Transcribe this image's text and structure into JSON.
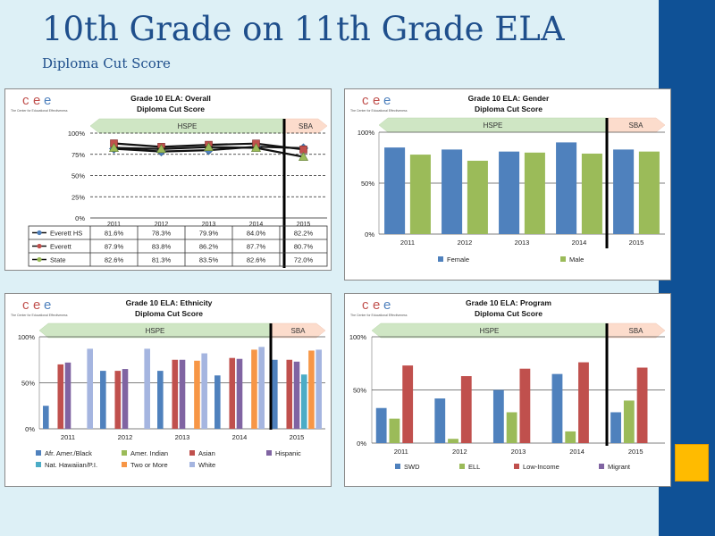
{
  "header": {
    "title": "10th Grade on 11th Grade ELA",
    "subtitle": "Diploma Cut Score"
  },
  "logo": {
    "letters": "cee",
    "tagline": "The Center for Educational Effectiveness"
  },
  "colors": {
    "sidebar": "#0f5196",
    "accent": "#ffbb00",
    "title": "#1f4f8c",
    "hspe_arrow": "#cfe6c4",
    "sba_arrow": "#fcdccc",
    "blue": "#4f81bd",
    "green": "#9bbb59",
    "red": "#c0504d",
    "purple": "#8064a2",
    "teal": "#4bacc6",
    "orange": "#f79646",
    "lightblue": "#a5b5e0"
  },
  "chart_data": [
    {
      "type": "line",
      "title": "Grade 10 ELA: Overall",
      "subtitle": "Diploma Cut Score",
      "periods": {
        "left": "HSPE",
        "right": "SBA"
      },
      "categories": [
        "2011",
        "2012",
        "2013",
        "2014",
        "2015"
      ],
      "yticks": [
        "100%",
        "75%",
        "50%",
        "25%",
        "0%"
      ],
      "ylim": [
        0,
        100
      ],
      "series": [
        {
          "name": "Everett HS",
          "values": [
            81.6,
            78.3,
            79.9,
            84.0,
            82.2
          ],
          "labels": [
            "81.6%",
            "78.3%",
            "79.9%",
            "84.0%",
            "82.2%"
          ],
          "color": "#4f81bd",
          "marker": "diamond"
        },
        {
          "name": "Everett",
          "values": [
            87.9,
            83.8,
            86.2,
            87.7,
            80.7
          ],
          "labels": [
            "87.9%",
            "83.8%",
            "86.2%",
            "87.7%",
            "80.7%"
          ],
          "color": "#c0504d",
          "marker": "square"
        },
        {
          "name": "State",
          "values": [
            82.6,
            81.3,
            83.5,
            82.6,
            72.0
          ],
          "labels": [
            "82.6%",
            "81.3%",
            "83.5%",
            "82.6%",
            "72.0%"
          ],
          "color": "#9bbb59",
          "marker": "triangle"
        }
      ]
    },
    {
      "type": "bar",
      "title": "Grade 10 ELA: Gender",
      "subtitle": "Diploma Cut Score",
      "periods": {
        "left": "HSPE",
        "right": "SBA"
      },
      "categories": [
        "2011",
        "2012",
        "2013",
        "2014",
        "2015"
      ],
      "yticks": [
        "100%",
        "50%",
        "0%"
      ],
      "ylim": [
        0,
        100
      ],
      "series": [
        {
          "name": "Female",
          "values": [
            85,
            83,
            81,
            90,
            83
          ],
          "color": "#4f81bd"
        },
        {
          "name": "Male",
          "values": [
            78,
            72,
            80,
            79,
            81
          ],
          "color": "#9bbb59"
        }
      ]
    },
    {
      "type": "bar",
      "title": "Grade 10 ELA: Ethnicity",
      "subtitle": "Diploma Cut Score",
      "periods": {
        "left": "HSPE",
        "right": "SBA"
      },
      "categories": [
        "2011",
        "2012",
        "2013",
        "2014",
        "2015"
      ],
      "yticks": [
        "100%",
        "50%",
        "0%"
      ],
      "ylim": [
        0,
        100
      ],
      "series": [
        {
          "name": "Afr. Amer./Black",
          "values": [
            25,
            63,
            63,
            58,
            75
          ],
          "color": "#4f81bd"
        },
        {
          "name": "Amer. Indian",
          "values": [
            null,
            null,
            null,
            null,
            null
          ],
          "color": "#9bbb59"
        },
        {
          "name": "Asian",
          "values": [
            70,
            63,
            75,
            77,
            75
          ],
          "color": "#c0504d"
        },
        {
          "name": "Hispanic",
          "values": [
            72,
            65,
            75,
            76,
            73
          ],
          "color": "#8064a2"
        },
        {
          "name": "Nat. Hawaiian/P.I.",
          "values": [
            null,
            null,
            null,
            null,
            59
          ],
          "color": "#4bacc6"
        },
        {
          "name": "Two or More",
          "values": [
            null,
            null,
            74,
            86,
            85
          ],
          "color": "#f79646"
        },
        {
          "name": "White",
          "values": [
            87,
            87,
            82,
            89,
            86
          ],
          "color": "#a5b5e0"
        }
      ]
    },
    {
      "type": "bar",
      "title": "Grade 10 ELA: Program",
      "subtitle": "Diploma Cut Score",
      "periods": {
        "left": "HSPE",
        "right": "SBA"
      },
      "categories": [
        "2011",
        "2012",
        "2013",
        "2014",
        "2015"
      ],
      "yticks": [
        "100%",
        "50%",
        "0%"
      ],
      "ylim": [
        0,
        100
      ],
      "series": [
        {
          "name": "SWD",
          "values": [
            33,
            42,
            50,
            65,
            29
          ],
          "color": "#4f81bd"
        },
        {
          "name": "ELL",
          "values": [
            23,
            4,
            29,
            11,
            40
          ],
          "color": "#9bbb59"
        },
        {
          "name": "Low-Income",
          "values": [
            73,
            63,
            70,
            76,
            71
          ],
          "color": "#c0504d"
        },
        {
          "name": "Migrant",
          "values": [
            null,
            null,
            null,
            null,
            null
          ],
          "color": "#8064a2"
        }
      ]
    }
  ]
}
